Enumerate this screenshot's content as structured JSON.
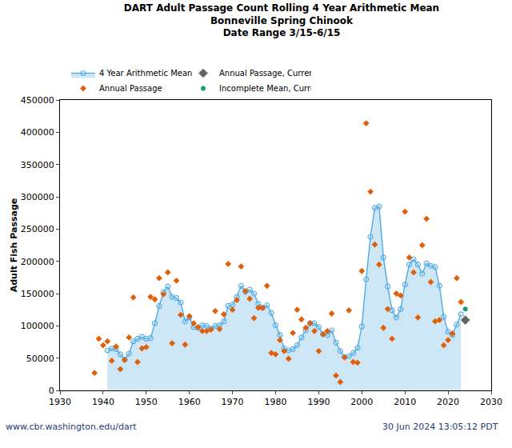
{
  "chart_data": {
    "type": "scatter",
    "title": "DART Adult Passage Count Rolling 4 Year Arithmetic Mean",
    "subtitle": [
      "Bonneville Spring Chinook",
      "Date Range 3/15-6/15"
    ],
    "y_label": "Adult Fish Passage",
    "footer": {
      "left": "www.cbr.washington.edu/dart",
      "right": "30 Jun 2024 13:05:12 PDT"
    },
    "xlim": [
      1930,
      2030
    ],
    "xticks": [
      1930,
      1940,
      1950,
      1960,
      1970,
      1980,
      1990,
      2000,
      2010,
      2020,
      2030
    ],
    "ylim": [
      0,
      450000
    ],
    "yticks": [
      0,
      50000,
      100000,
      150000,
      200000,
      250000,
      300000,
      350000,
      400000,
      450000
    ],
    "grid": false,
    "legend": "top",
    "series": [
      {
        "name": "4 Year Arithmetic Mean",
        "type": "area",
        "marker": "circle-open",
        "color": "#5aaee3",
        "x": [
          1941,
          1942,
          1943,
          1944,
          1945,
          1946,
          1947,
          1948,
          1949,
          1950,
          1951,
          1952,
          1953,
          1954,
          1955,
          1956,
          1957,
          1958,
          1959,
          1960,
          1961,
          1962,
          1963,
          1964,
          1965,
          1966,
          1967,
          1968,
          1969,
          1970,
          1971,
          1972,
          1973,
          1974,
          1975,
          1976,
          1977,
          1978,
          1979,
          1980,
          1981,
          1982,
          1983,
          1984,
          1985,
          1986,
          1987,
          1988,
          1989,
          1990,
          1991,
          1992,
          1993,
          1994,
          1995,
          1996,
          1997,
          1998,
          1999,
          2000,
          2001,
          2002,
          2003,
          2004,
          2005,
          2006,
          2007,
          2008,
          2009,
          2010,
          2011,
          2012,
          2013,
          2014,
          2015,
          2016,
          2017,
          2018,
          2019,
          2020,
          2021,
          2022,
          2023
        ],
        "values": [
          62000,
          65000,
          64000,
          56000,
          48000,
          57000,
          76000,
          80000,
          83000,
          80000,
          81000,
          104000,
          131000,
          152000,
          161000,
          145000,
          143000,
          136000,
          107000,
          113000,
          98000,
          97000,
          101000,
          100000,
          96000,
          100000,
          101000,
          107000,
          131000,
          133000,
          145000,
          162000,
          153000,
          156000,
          150000,
          134000,
          128000,
          132000,
          120000,
          101000,
          86000,
          65000,
          62000,
          64000,
          70000,
          82000,
          93000,
          104000,
          104000,
          98000,
          87000,
          86000,
          93000,
          74000,
          61000,
          52000,
          53000,
          58000,
          66000,
          99000,
          172000,
          238000,
          283000,
          285000,
          206000,
          161000,
          124000,
          113000,
          126000,
          164000,
          195000,
          203000,
          195000,
          181000,
          197000,
          193000,
          191000,
          162000,
          114000,
          91000,
          86000,
          102000,
          118000
        ]
      },
      {
        "name": "Annual Passage, Current Year Data",
        "type": "scatter",
        "marker": "diamond",
        "color": "#666666",
        "x": [
          2024
        ],
        "values": [
          109000
        ]
      },
      {
        "name": "Annual Passage",
        "type": "scatter",
        "marker": "diamond",
        "color": "#e0600a",
        "x": [
          1938,
          1939,
          1940,
          1941,
          1942,
          1943,
          1944,
          1945,
          1946,
          1947,
          1948,
          1949,
          1950,
          1951,
          1952,
          1953,
          1954,
          1955,
          1956,
          1957,
          1958,
          1959,
          1960,
          1961,
          1962,
          1963,
          1964,
          1965,
          1966,
          1967,
          1968,
          1969,
          1970,
          1971,
          1972,
          1973,
          1974,
          1975,
          1976,
          1977,
          1978,
          1979,
          1980,
          1981,
          1982,
          1983,
          1984,
          1985,
          1986,
          1987,
          1988,
          1989,
          1990,
          1991,
          1992,
          1993,
          1994,
          1995,
          1996,
          1997,
          1998,
          1999,
          2000,
          2001,
          2002,
          2003,
          2004,
          2005,
          2006,
          2007,
          2008,
          2009,
          2010,
          2011,
          2012,
          2013,
          2014,
          2015,
          2016,
          2017,
          2018,
          2019,
          2020,
          2021,
          2022,
          2023
        ],
        "values": [
          27000,
          80000,
          70000,
          76000,
          46000,
          68000,
          33000,
          47000,
          82000,
          144000,
          44000,
          65000,
          67000,
          145000,
          141000,
          174000,
          149000,
          183000,
          73000,
          170000,
          117000,
          71000,
          115000,
          104000,
          98000,
          92000,
          92000,
          94000,
          123000,
          95000,
          118000,
          196000,
          125000,
          140000,
          192000,
          154000,
          142000,
          112000,
          128000,
          128000,
          162000,
          58000,
          56000,
          78000,
          61000,
          49000,
          89000,
          125000,
          110000,
          97000,
          104000,
          92000,
          61000,
          87000,
          92000,
          119000,
          23000,
          13000,
          51000,
          124000,
          44000,
          43000,
          185000,
          414000,
          308000,
          226000,
          195000,
          97000,
          126000,
          80000,
          150000,
          147000,
          277000,
          206000,
          183000,
          113000,
          225000,
          266000,
          168000,
          107000,
          109000,
          70000,
          78000,
          88000,
          174000,
          137000
        ]
      },
      {
        "name": "Incomplete Mean, Current Year Data",
        "type": "scatter",
        "marker": "circle",
        "color": "#17a078",
        "x": [
          2024
        ],
        "values": [
          126000
        ]
      }
    ]
  }
}
